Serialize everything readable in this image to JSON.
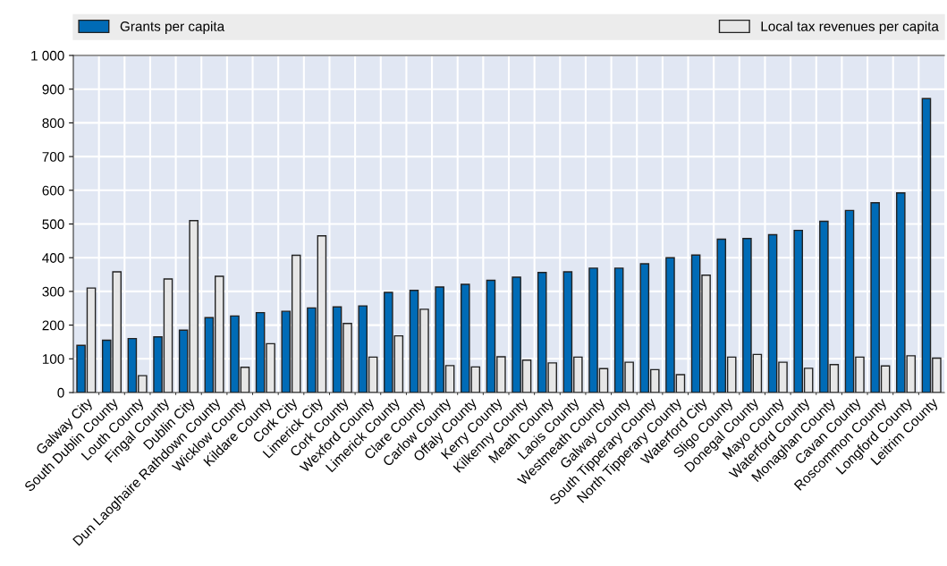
{
  "chart_data": {
    "type": "bar",
    "categories": [
      "Galway City",
      "South Dublin County",
      "Louth County",
      "Fingal County",
      "Dublin City",
      "Dun Laoghaire Rathdown County",
      "Wicklow County",
      "Kildare County",
      "Cork City",
      "Limerick City",
      "Cork County",
      "Wexford County",
      "Limerick County",
      "Clare County",
      "Carlow County",
      "Offaly County",
      "Kerry County",
      "Kilkenny County",
      "Meath County",
      "Laois County",
      "Westmeath County",
      "Galway County",
      "South Tipperary County",
      "North Tipperary County",
      "Waterford City",
      "Sligo County",
      "Donegal County",
      "Mayo County",
      "Waterford County",
      "Monaghan County",
      "Cavan County",
      "Roscommon County",
      "Longford County",
      "Leitrim County"
    ],
    "series": [
      {
        "name": "Grants per capita",
        "color": "#006bb6",
        "values": [
          140,
          155,
          160,
          165,
          185,
          222,
          227,
          237,
          241,
          251,
          254,
          257,
          297,
          303,
          313,
          321,
          333,
          342,
          356,
          358,
          369,
          369,
          382,
          400,
          408,
          455,
          457,
          468,
          481,
          508,
          540,
          563,
          592,
          872
        ]
      },
      {
        "name": "Local tax revenues per capita",
        "color": "#e6e6e6",
        "values": [
          310,
          358,
          50,
          337,
          510,
          345,
          75,
          145,
          407,
          465,
          205,
          105,
          168,
          247,
          80,
          76,
          106,
          96,
          88,
          105,
          71,
          90,
          68,
          53,
          348,
          105,
          113,
          90,
          72,
          83,
          105,
          79,
          109,
          102
        ]
      }
    ],
    "ylim": [
      0,
      1000
    ],
    "yticks": [
      0,
      100,
      200,
      300,
      400,
      500,
      600,
      700,
      800,
      900,
      {
        "value": 1000,
        "label": "1 000"
      }
    ],
    "grid": true,
    "legend": "top"
  }
}
